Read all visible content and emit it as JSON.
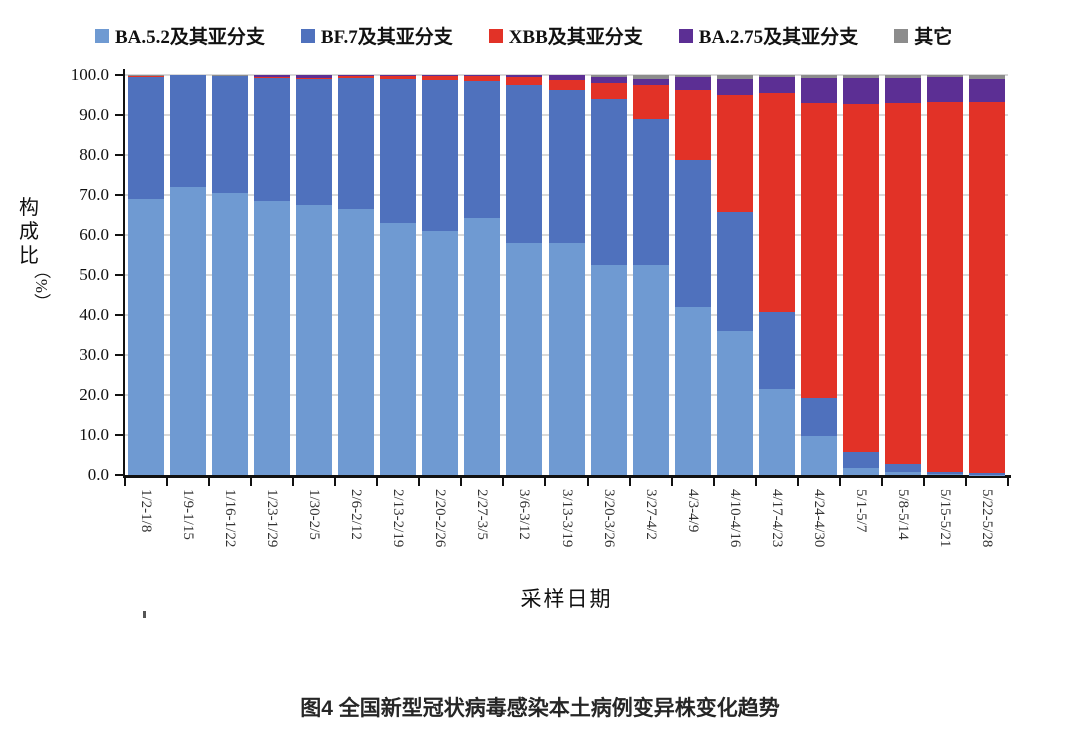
{
  "caption": "图4 全国新型冠状病毒感染本土病例变异株变化趋势",
  "axis": {
    "ylabel": "构成比",
    "ylabel_unit": "（%）",
    "xlabel": "采样日期",
    "y_tick_labels": [
      "100.0",
      "90.0",
      "80.0",
      "70.0",
      "60.0",
      "50.0",
      "40.0",
      "30.0",
      "20.0",
      "10.0",
      "0.0"
    ]
  },
  "chart_data": {
    "type": "bar",
    "stacked": true,
    "percent_stacked": true,
    "title": "",
    "xlabel": "采样日期",
    "ylabel": "构成比（%）",
    "ylim": [
      0,
      100
    ],
    "ytick_step": 10,
    "grid": true,
    "legend_position": "top",
    "categories": [
      "1/2-1/8",
      "1/9-1/15",
      "1/16-1/22",
      "1/23-1/29",
      "1/30-2/5",
      "2/6-2/12",
      "2/13-2/19",
      "2/20-2/26",
      "2/27-3/5",
      "3/6-3/12",
      "3/13-3/19",
      "3/20-3/26",
      "3/27-4/2",
      "4/3-4/9",
      "4/10-4/16",
      "4/17-4/23",
      "4/24-4/30",
      "5/1-5/7",
      "5/8-5/14",
      "5/15-5/21",
      "5/22-5/28"
    ],
    "series": [
      {
        "name": "BA.5.2及其亚分支",
        "color": "#6f9ad2",
        "values": [
          69.0,
          72.0,
          70.5,
          68.5,
          67.5,
          66.5,
          63.0,
          61.0,
          64.3,
          58.0,
          58.0,
          52.5,
          52.5,
          42.0,
          36.0,
          21.5,
          9.7,
          1.7,
          0.8,
          0.2,
          0.1
        ]
      },
      {
        "name": "BF.7及其亚分支",
        "color": "#4f71bd",
        "values": [
          30.6,
          27.9,
          29.3,
          30.8,
          31.6,
          32.7,
          36.1,
          37.8,
          34.2,
          39.6,
          38.3,
          41.5,
          36.5,
          36.8,
          29.8,
          19.3,
          9.5,
          4.1,
          2.0,
          0.5,
          0.3
        ]
      },
      {
        "name": "XBB及其亚分支",
        "color": "#e23227",
        "values": [
          0.1,
          0.0,
          0.0,
          0.1,
          0.1,
          0.6,
          0.7,
          1.0,
          1.3,
          2.0,
          2.5,
          4.0,
          8.5,
          17.4,
          29.2,
          54.7,
          73.8,
          86.9,
          90.2,
          92.6,
          92.8
        ]
      },
      {
        "name": "BA.2.75及其亚分支",
        "color": "#5c2f94",
        "values": [
          0.1,
          0.0,
          0.0,
          0.5,
          0.7,
          0.1,
          0.1,
          0.1,
          0.1,
          0.3,
          1.1,
          1.6,
          1.5,
          3.4,
          4.0,
          4.0,
          6.2,
          6.5,
          6.2,
          6.3,
          5.8
        ]
      },
      {
        "name": "其它",
        "color": "#8c8c8c",
        "values": [
          0.2,
          0.1,
          0.2,
          0.1,
          0.1,
          0.1,
          0.1,
          0.1,
          0.1,
          0.1,
          0.1,
          0.4,
          1.0,
          0.4,
          1.0,
          0.5,
          0.8,
          0.8,
          0.8,
          0.4,
          1.0
        ]
      }
    ]
  }
}
